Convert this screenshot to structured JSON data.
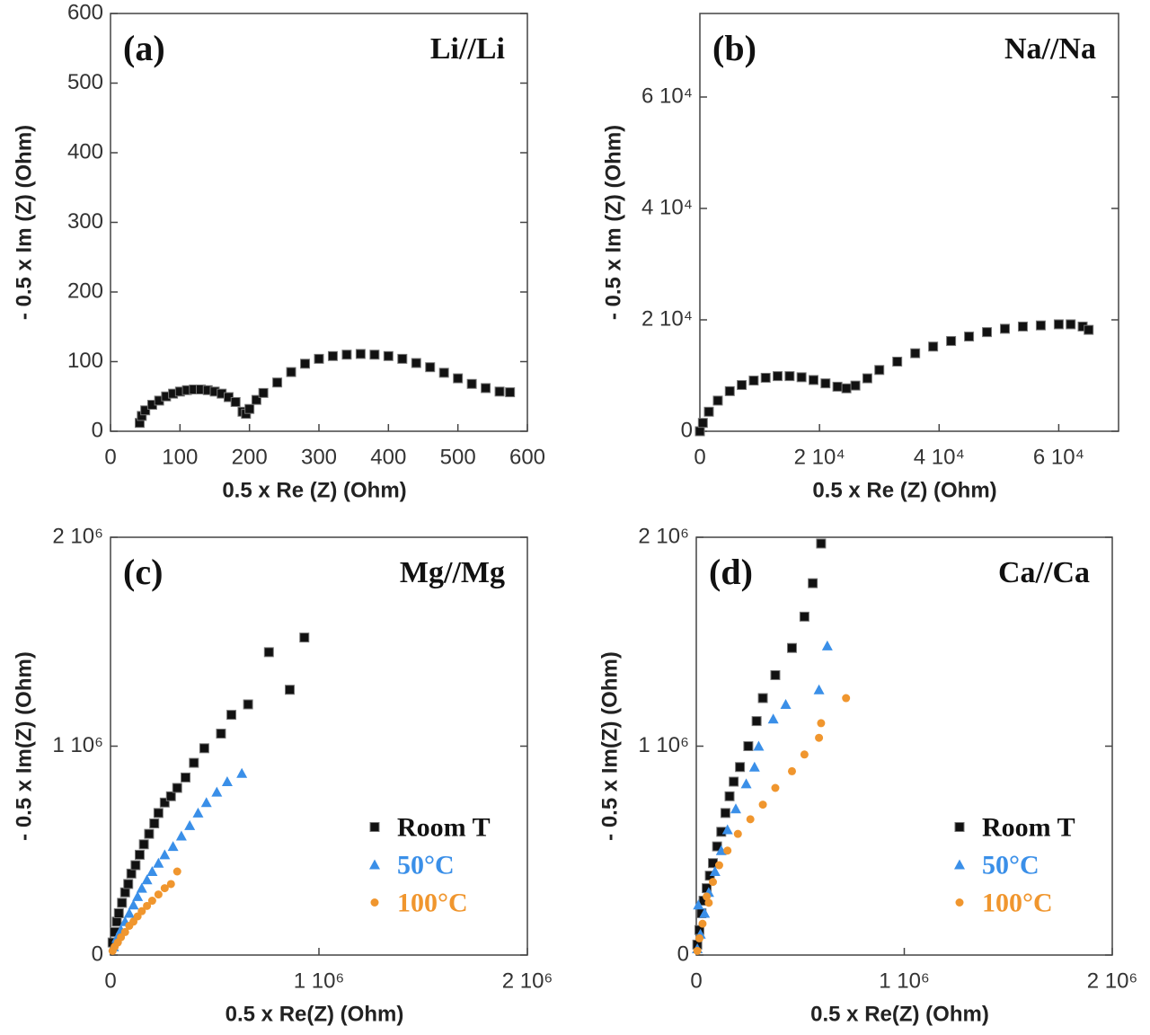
{
  "chart_data": [
    {
      "type": "scatter",
      "panel_label": "(a)",
      "title": "Li//Li",
      "x_label": "0.5 x Re (Z) (Ohm)",
      "y_label": "- 0.5 x Im (Z) (Ohm)",
      "xlim": [
        0,
        600
      ],
      "ylim": [
        0,
        600
      ],
      "xticks": [
        0,
        100,
        200,
        300,
        400,
        500,
        600
      ],
      "yticks": [
        0,
        100,
        200,
        300,
        400,
        500,
        600
      ],
      "grid": false,
      "series": [
        {
          "color": "#111111",
          "marker": "square",
          "x": [
            42,
            45,
            50,
            60,
            70,
            80,
            90,
            100,
            110,
            120,
            130,
            140,
            150,
            160,
            170,
            180,
            190,
            195,
            200,
            210,
            220,
            240,
            260,
            280,
            300,
            320,
            340,
            360,
            380,
            400,
            420,
            440,
            460,
            480,
            500,
            520,
            540,
            560,
            575
          ],
          "values": [
            12,
            22,
            30,
            38,
            44,
            50,
            54,
            57,
            59,
            60,
            60,
            59,
            57,
            54,
            49,
            42,
            28,
            25,
            32,
            45,
            55,
            70,
            85,
            97,
            104,
            108,
            110,
            111,
            110,
            108,
            104,
            98,
            92,
            84,
            76,
            68,
            62,
            57,
            56
          ]
        }
      ]
    },
    {
      "type": "scatter",
      "panel_label": "(b)",
      "title": "Na//Na",
      "x_label": "0.5 x Re (Z) (Ohm)",
      "y_label": "- 0.5 x Im (Z) (Ohm)",
      "xlim": [
        0,
        70000
      ],
      "ylim": [
        0,
        75000
      ],
      "xticks": [
        0,
        {
          "value": 20000,
          "label": "2 10⁴"
        },
        {
          "value": 40000,
          "label": "4 10⁴"
        },
        {
          "value": 60000,
          "label": "6 10⁴"
        }
      ],
      "yticks": [
        0,
        {
          "value": 20000,
          "label": "2 10⁴"
        },
        {
          "value": 40000,
          "label": "4 10⁴"
        },
        {
          "value": 60000,
          "label": "6 10⁴"
        }
      ],
      "grid": false,
      "series": [
        {
          "color": "#111111",
          "marker": "square",
          "x": [
            0,
            500,
            1500,
            3000,
            5000,
            7000,
            9000,
            11000,
            13000,
            15000,
            17000,
            19000,
            21000,
            23000,
            24500,
            26000,
            28000,
            30000,
            33000,
            36000,
            39000,
            42000,
            45000,
            48000,
            51000,
            54000,
            57000,
            60000,
            62000,
            64000,
            65000
          ],
          "values": [
            0,
            1500,
            3500,
            5500,
            7200,
            8300,
            9100,
            9600,
            9900,
            9900,
            9700,
            9200,
            8600,
            8000,
            7700,
            8200,
            9500,
            11000,
            12500,
            14000,
            15200,
            16200,
            17000,
            17800,
            18400,
            18800,
            19000,
            19200,
            19200,
            18800,
            18200
          ]
        }
      ]
    },
    {
      "type": "scatter",
      "panel_label": "(c)",
      "title": "Mg//Mg",
      "x_label": "0.5 x Re(Z) (Ohm)",
      "y_label": "- 0.5 x Im(Z) (Ohm)",
      "xlim": [
        0,
        2000000
      ],
      "ylim": [
        0,
        2000000
      ],
      "xticks": [
        0,
        {
          "value": 1000000,
          "label": "1 10⁶"
        },
        {
          "value": 2000000,
          "label": "2 10⁶"
        }
      ],
      "yticks": [
        0,
        {
          "value": 1000000,
          "label": "1 10⁶"
        },
        {
          "value": 2000000,
          "label": "2 10⁶"
        }
      ],
      "grid": false,
      "legend": "right",
      "series": [
        {
          "name": "Room T",
          "color": "#111111",
          "marker": "square",
          "x": [
            10000,
            20000,
            30000,
            40000,
            55000,
            70000,
            85000,
            100000,
            120000,
            140000,
            160000,
            185000,
            210000,
            230000,
            260000,
            290000,
            320000,
            360000,
            400000,
            450000,
            530000,
            580000,
            660000,
            760000,
            860000,
            930000
          ],
          "values": [
            60000,
            110000,
            160000,
            200000,
            250000,
            300000,
            340000,
            390000,
            430000,
            480000,
            530000,
            580000,
            630000,
            680000,
            730000,
            760000,
            800000,
            850000,
            920000,
            990000,
            1060000,
            1150000,
            1200000,
            1450000,
            1270000,
            1520000
          ]
        },
        {
          "name": "50°C",
          "color": "#3a8fe8",
          "marker": "triangle",
          "x": [
            15000,
            30000,
            50000,
            70000,
            90000,
            110000,
            130000,
            150000,
            175000,
            200000,
            230000,
            260000,
            300000,
            340000,
            380000,
            420000,
            460000,
            510000,
            560000,
            630000
          ],
          "values": [
            40000,
            80000,
            120000,
            160000,
            200000,
            240000,
            280000,
            320000,
            360000,
            400000,
            440000,
            480000,
            520000,
            570000,
            620000,
            680000,
            730000,
            780000,
            830000,
            870000
          ]
        },
        {
          "name": "100°C",
          "color": "#f0962e",
          "marker": "circle",
          "x": [
            10000,
            20000,
            35000,
            50000,
            70000,
            90000,
            110000,
            130000,
            150000,
            175000,
            200000,
            230000,
            260000,
            290000,
            320000
          ],
          "values": [
            20000,
            40000,
            60000,
            85000,
            110000,
            140000,
            160000,
            185000,
            210000,
            235000,
            260000,
            290000,
            320000,
            340000,
            400000
          ]
        }
      ]
    },
    {
      "type": "scatter",
      "panel_label": "(d)",
      "title": "Ca//Ca",
      "x_label": "0.5 x Re(Z) (Ohm)",
      "y_label": "- 0.5 x Im(Z) (Ohm)",
      "xlim": [
        0,
        2000000
      ],
      "ylim": [
        0,
        2000000
      ],
      "xticks": [
        0,
        {
          "value": 1000000,
          "label": "1 10⁶"
        },
        {
          "value": 2000000,
          "label": "2 10⁶"
        }
      ],
      "yticks": [
        0,
        {
          "value": 1000000,
          "label": "1 10⁶"
        },
        {
          "value": 2000000,
          "label": "2 10⁶"
        }
      ],
      "grid": false,
      "legend": "right",
      "series": [
        {
          "name": "Room T",
          "color": "#111111",
          "marker": "square",
          "x": [
            5000,
            15000,
            25000,
            35000,
            50000,
            65000,
            80000,
            100000,
            120000,
            140000,
            160000,
            180000,
            210000,
            250000,
            290000,
            320000,
            380000,
            460000,
            520000,
            560000,
            600000
          ],
          "values": [
            50000,
            120000,
            200000,
            260000,
            320000,
            380000,
            440000,
            520000,
            590000,
            680000,
            760000,
            830000,
            900000,
            1000000,
            1120000,
            1230000,
            1340000,
            1470000,
            1620000,
            1780000,
            1970000
          ]
        },
        {
          "name": "50°C",
          "color": "#3a8fe8",
          "marker": "triangle",
          "x": [
            10000,
            5000,
            20000,
            40000,
            60000,
            90000,
            120000,
            150000,
            190000,
            240000,
            280000,
            300000,
            370000,
            430000,
            590000,
            630000
          ],
          "values": [
            240000,
            30000,
            100000,
            200000,
            300000,
            400000,
            500000,
            600000,
            700000,
            820000,
            900000,
            1000000,
            1130000,
            1200000,
            1270000,
            1480000
          ]
        },
        {
          "name": "100°C",
          "color": "#f0962e",
          "marker": "circle",
          "x": [
            5000,
            15000,
            30000,
            50000,
            60000,
            80000,
            110000,
            150000,
            200000,
            260000,
            320000,
            380000,
            460000,
            520000,
            590000,
            600000,
            720000
          ],
          "values": [
            20000,
            80000,
            150000,
            280000,
            250000,
            350000,
            430000,
            500000,
            580000,
            650000,
            720000,
            800000,
            880000,
            960000,
            1040000,
            1110000,
            1230000
          ]
        }
      ]
    }
  ]
}
